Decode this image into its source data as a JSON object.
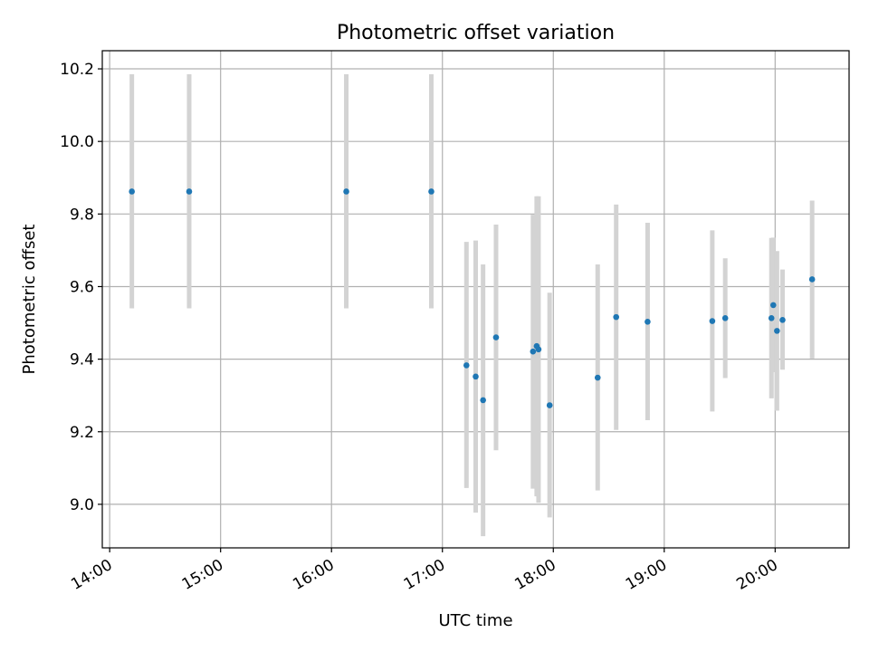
{
  "chart_data": {
    "type": "scatter",
    "title": "Photometric offset variation",
    "xlabel": "UTC time",
    "ylabel": "Photometric offset",
    "x_axis": {
      "kind": "time",
      "ticks": [
        "14:00",
        "15:00",
        "16:00",
        "17:00",
        "18:00",
        "19:00",
        "20:00"
      ],
      "range": [
        "13:56",
        "20:40"
      ]
    },
    "y_axis": {
      "ticks": [
        "9.0",
        "9.2",
        "9.4",
        "9.6",
        "9.8",
        "10.0",
        "10.2"
      ],
      "range": [
        8.88,
        10.25
      ]
    },
    "grid": true,
    "colors": {
      "point": "#1f77b4",
      "errorbar": "#d3d3d3",
      "grid": "#b0b0b0"
    },
    "points": [
      {
        "time": "14:12",
        "y": 9.862,
        "low": 9.54,
        "high": 10.185
      },
      {
        "time": "14:43",
        "y": 9.862,
        "low": 9.54,
        "high": 10.185
      },
      {
        "time": "16:08",
        "y": 9.862,
        "low": 9.54,
        "high": 10.185
      },
      {
        "time": "16:54",
        "y": 9.862,
        "low": 9.54,
        "high": 10.185
      },
      {
        "time": "17:13",
        "y": 9.383,
        "low": 9.045,
        "high": 9.723
      },
      {
        "time": "17:18",
        "y": 9.352,
        "low": 8.977,
        "high": 9.727
      },
      {
        "time": "17:22",
        "y": 9.287,
        "low": 8.912,
        "high": 9.661
      },
      {
        "time": "17:29",
        "y": 9.46,
        "low": 9.149,
        "high": 9.771
      },
      {
        "time": "17:49",
        "y": 9.421,
        "low": 9.043,
        "high": 9.798
      },
      {
        "time": "17:51",
        "y": 9.436,
        "low": 9.022,
        "high": 9.849
      },
      {
        "time": "17:52",
        "y": 9.427,
        "low": 9.004,
        "high": 9.849
      },
      {
        "time": "17:58",
        "y": 9.273,
        "low": 8.964,
        "high": 9.583
      },
      {
        "time": "18:24",
        "y": 9.349,
        "low": 9.038,
        "high": 9.661
      },
      {
        "time": "18:34",
        "y": 9.516,
        "low": 9.205,
        "high": 9.826
      },
      {
        "time": "18:51",
        "y": 9.503,
        "low": 9.232,
        "high": 9.776
      },
      {
        "time": "19:26",
        "y": 9.505,
        "low": 9.256,
        "high": 9.755
      },
      {
        "time": "19:33",
        "y": 9.513,
        "low": 9.348,
        "high": 9.678
      },
      {
        "time": "19:58",
        "y": 9.513,
        "low": 9.292,
        "high": 9.734
      },
      {
        "time": "19:59",
        "y": 9.549,
        "low": 9.364,
        "high": 9.735
      },
      {
        "time": "20:01",
        "y": 9.478,
        "low": 9.258,
        "high": 9.698
      },
      {
        "time": "20:04",
        "y": 9.508,
        "low": 9.371,
        "high": 9.647
      },
      {
        "time": "20:20",
        "y": 9.62,
        "low": 9.402,
        "high": 9.837
      }
    ]
  }
}
